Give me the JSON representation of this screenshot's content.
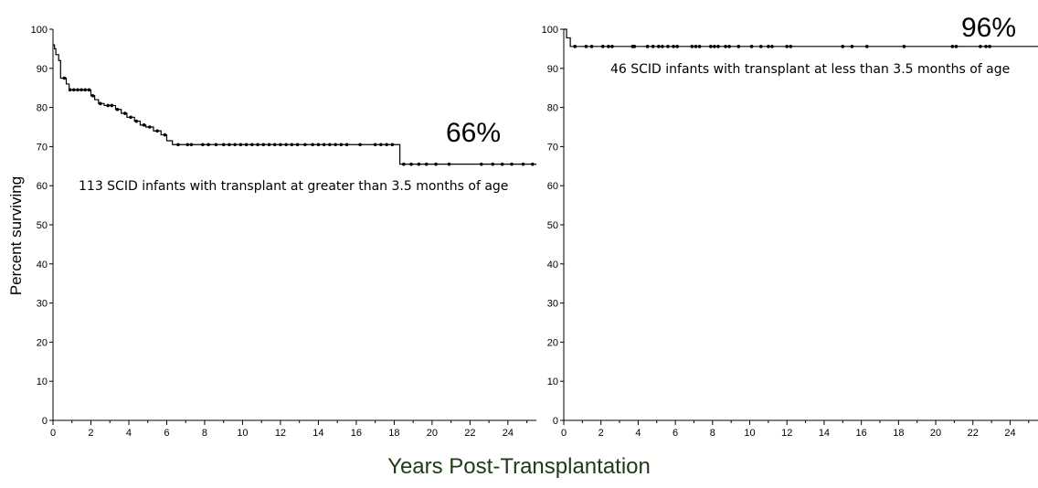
{
  "chart_data": [
    {
      "type": "line",
      "subtype": "kaplan-meier",
      "annotation": "113 SCID infants with transplant at greater than 3.5 months of age",
      "final_label": "66%",
      "ylabel": "Percent surviving",
      "xlim": [
        0,
        25.5
      ],
      "ylim": [
        0,
        100
      ],
      "xticks": [
        "0",
        "2",
        "4",
        "6",
        "8",
        "10",
        "12",
        "14",
        "16",
        "18",
        "20",
        "22",
        "24"
      ],
      "yticks": [
        "0",
        "10",
        "20",
        "30",
        "40",
        "50",
        "60",
        "70",
        "80",
        "90",
        "100"
      ],
      "grid": false,
      "series": [
        {
          "color": "#000000",
          "steps": [
            [
              0,
              96
            ],
            [
              0.08,
              95
            ],
            [
              0.15,
              93.5
            ],
            [
              0.3,
              92
            ],
            [
              0.4,
              87.5
            ],
            [
              0.7,
              86
            ],
            [
              0.85,
              84.5
            ],
            [
              2,
              83
            ],
            [
              2.2,
              82
            ],
            [
              2.4,
              81
            ],
            [
              2.7,
              80.5
            ],
            [
              3.3,
              79.5
            ],
            [
              3.6,
              78.5
            ],
            [
              3.9,
              77.5
            ],
            [
              4.3,
              76.5
            ],
            [
              4.6,
              75.5
            ],
            [
              4.9,
              75
            ],
            [
              5.3,
              74
            ],
            [
              5.7,
              73
            ],
            [
              6,
              71.5
            ],
            [
              6.3,
              70.5
            ],
            [
              18.3,
              65.5
            ],
            [
              25.5,
              65.5
            ]
          ],
          "censored": [
            0.6,
            0.9,
            1.1,
            1.3,
            1.5,
            1.7,
            1.9,
            2.1,
            2.5,
            2.9,
            3.1,
            3.4,
            3.8,
            4.1,
            4.4,
            4.8,
            5.1,
            5.5,
            5.9,
            6.6,
            7.1,
            7.3,
            7.9,
            8.2,
            8.6,
            9.0,
            9.3,
            9.6,
            9.9,
            10.2,
            10.5,
            10.8,
            11.1,
            11.4,
            11.7,
            12.0,
            12.3,
            12.6,
            12.9,
            13.3,
            13.7,
            14.0,
            14.3,
            14.6,
            14.9,
            15.2,
            15.5,
            16.2,
            17.0,
            17.3,
            17.6,
            17.9,
            18.5,
            18.9,
            19.3,
            19.7,
            20.2,
            20.9,
            22.6,
            23.2,
            23.7,
            24.2,
            24.8,
            25.3
          ]
        }
      ]
    },
    {
      "type": "line",
      "subtype": "kaplan-meier",
      "annotation": "46 SCID infants with transplant at less than 3.5 months of age",
      "final_label": "96%",
      "ylabel": "",
      "xlim": [
        0,
        25.5
      ],
      "ylim": [
        0,
        100
      ],
      "xticks": [
        "0",
        "2",
        "4",
        "6",
        "8",
        "10",
        "12",
        "14",
        "16",
        "18",
        "20",
        "22",
        "24"
      ],
      "yticks": [
        "0",
        "10",
        "20",
        "30",
        "40",
        "50",
        "60",
        "70",
        "80",
        "90",
        "100"
      ],
      "grid": false,
      "series": [
        {
          "color": "#000000",
          "steps": [
            [
              0,
              100
            ],
            [
              0.15,
              97.8
            ],
            [
              0.35,
              95.6
            ],
            [
              25.5,
              95.6
            ]
          ],
          "censored": [
            0.6,
            1.2,
            1.5,
            2.1,
            2.4,
            2.6,
            3.7,
            3.8,
            4.5,
            4.8,
            5.1,
            5.3,
            5.6,
            5.9,
            6.1,
            6.9,
            7.1,
            7.3,
            7.9,
            8.1,
            8.3,
            8.7,
            8.9,
            9.4,
            10.1,
            10.6,
            11.0,
            11.2,
            12.0,
            12.2,
            15.0,
            15.5,
            16.3,
            18.3,
            20.9,
            21.1,
            22.4,
            22.7,
            22.9
          ]
        }
      ]
    }
  ],
  "shared_xlabel": "Years Post-Transplantation"
}
